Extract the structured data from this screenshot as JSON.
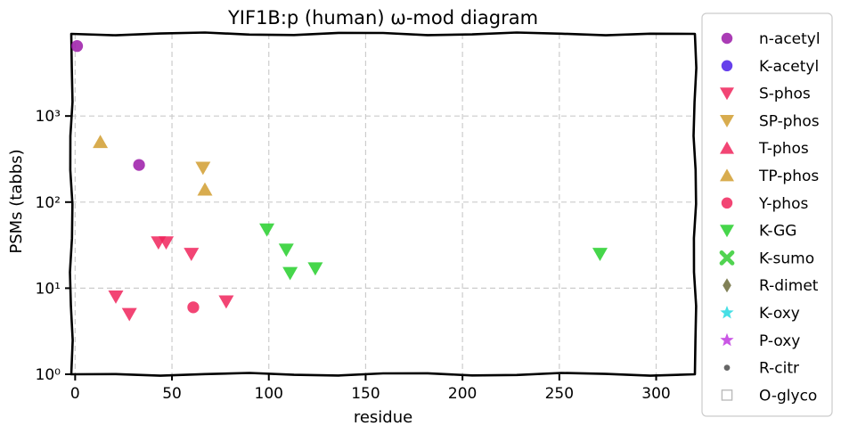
{
  "chart_data": {
    "type": "scatter",
    "title": "YIF1B:p (human) ω-mod diagram",
    "xlabel": "residue",
    "ylabel": "PSMs (tabbs)",
    "xlim": [
      -2,
      320
    ],
    "ylim": [
      1,
      9000
    ],
    "y_scale": "log",
    "x_ticks": [
      0,
      50,
      100,
      150,
      200,
      250,
      300
    ],
    "y_ticks": [
      {
        "value": 1,
        "label": "10⁰"
      },
      {
        "value": 10,
        "label": "10¹"
      },
      {
        "value": 100,
        "label": "10²"
      },
      {
        "value": 1000,
        "label": "10³"
      }
    ],
    "grid": true,
    "legend_position": "right",
    "series": [
      {
        "name": "n-acetyl",
        "color": "#9b1aa8",
        "marker": "circle",
        "points": [
          [
            1,
            6500
          ],
          [
            33,
            270
          ]
        ]
      },
      {
        "name": "K-acetyl",
        "color": "#4b1ee8",
        "marker": "circle",
        "points": []
      },
      {
        "name": "S-phos",
        "color": "#f0245c",
        "marker": "triangle-down",
        "points": [
          [
            21,
            8
          ],
          [
            28,
            5
          ],
          [
            43,
            34
          ],
          [
            47,
            34
          ],
          [
            60,
            25
          ],
          [
            78,
            7
          ]
        ]
      },
      {
        "name": "SP-phos",
        "color": "#d19d30",
        "marker": "triangle-down",
        "points": [
          [
            66,
            250
          ]
        ]
      },
      {
        "name": "T-phos",
        "color": "#f0245c",
        "marker": "triangle-up",
        "points": []
      },
      {
        "name": "TP-phos",
        "color": "#d19d30",
        "marker": "triangle-up",
        "points": [
          [
            13,
            500
          ],
          [
            67,
            140
          ]
        ]
      },
      {
        "name": "Y-phos",
        "color": "#f0245c",
        "marker": "circle",
        "points": [
          [
            61,
            6
          ]
        ]
      },
      {
        "name": "K-GG",
        "color": "#26cf2b",
        "marker": "triangle-down",
        "points": [
          [
            99,
            48
          ],
          [
            109,
            28
          ],
          [
            111,
            15
          ],
          [
            124,
            17
          ],
          [
            271,
            25
          ]
        ]
      },
      {
        "name": "K-sumo",
        "color": "#33cc33",
        "marker": "x",
        "points": []
      },
      {
        "name": "R-dimet",
        "color": "#6b6b3a",
        "marker": "diamond",
        "points": []
      },
      {
        "name": "K-oxy",
        "color": "#26d9e0",
        "marker": "star",
        "points": []
      },
      {
        "name": "P-oxy",
        "color": "#c13ae0",
        "marker": "star",
        "points": []
      },
      {
        "name": "R-citr",
        "color": "#666666",
        "marker": "dot",
        "points": []
      },
      {
        "name": "O-glyco",
        "color": "#bbbbbb",
        "marker": "square-open",
        "points": []
      }
    ]
  }
}
